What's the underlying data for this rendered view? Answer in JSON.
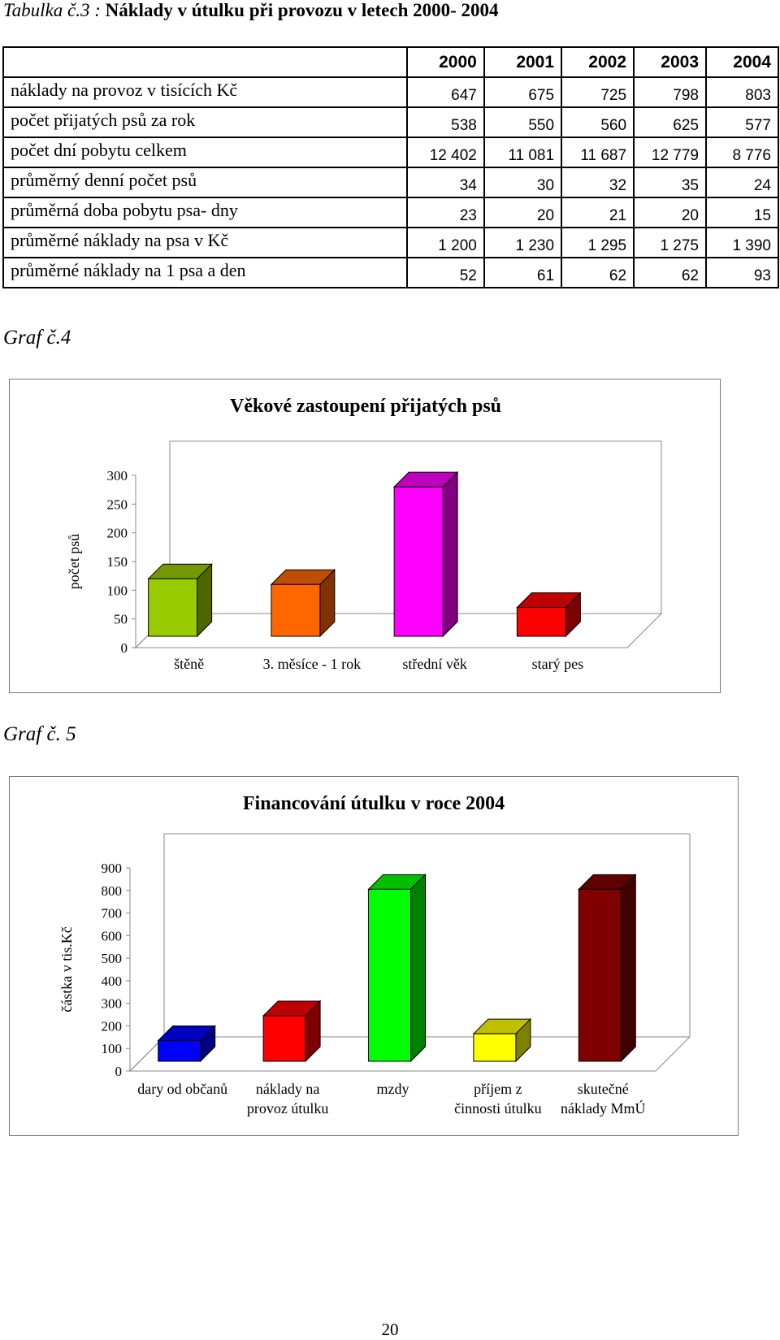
{
  "caption": {
    "prefix": "Tabulka č.3 :",
    "title": "Náklady v útulku při provozu v letech 2000- 2004"
  },
  "table": {
    "years": [
      "2000",
      "2001",
      "2002",
      "2003",
      "2004"
    ],
    "rows": [
      {
        "label": "náklady na provoz v tisících Kč",
        "values": [
          "647",
          "675",
          "725",
          "798",
          "803"
        ]
      },
      {
        "label": "počet přijatých psů za rok",
        "values": [
          "538",
          "550",
          "560",
          "625",
          "577"
        ]
      },
      {
        "label": "počet dní pobytu celkem",
        "values": [
          "12 402",
          "11 081",
          "11 687",
          "12 779",
          "8 776"
        ]
      },
      {
        "label": "průměrný denní počet psů",
        "values": [
          "34",
          "30",
          "32",
          "35",
          "24"
        ]
      },
      {
        "label": "průměrná doba pobytu psa- dny",
        "values": [
          "23",
          "20",
          "21",
          "20",
          "15"
        ]
      },
      {
        "label": "průměrné náklady na psa v Kč",
        "values": [
          "1 200",
          "1 230",
          "1 295",
          "1 275",
          "1 390"
        ]
      },
      {
        "label": "průměrné náklady na 1 psa a den",
        "values": [
          "52",
          "61",
          "62",
          "62",
          "93"
        ]
      }
    ]
  },
  "graf4_label": "Graf č.4",
  "graf5_label": "Graf č. 5",
  "page_number": "20",
  "chart_data": [
    {
      "type": "bar",
      "title": "Věkové zastoupení přijatých psů",
      "xlabel": "",
      "ylabel": "počet psů",
      "ylim": [
        0,
        300
      ],
      "yticks": [
        "0",
        "50",
        "100",
        "150",
        "200",
        "250",
        "300"
      ],
      "categories": [
        "štěně",
        "3. měsíce - 1 rok",
        "střední věk",
        "starý pes"
      ],
      "values": [
        120,
        110,
        280,
        70
      ],
      "colors": [
        "#99cc00",
        "#ff6600",
        "#ff00ff",
        "#ff0000"
      ],
      "style": "3d",
      "grid": false,
      "legend": "none"
    },
    {
      "type": "bar",
      "title": "Financování útulku v roce 2004",
      "xlabel": "",
      "ylabel": "částka v tis.Kč",
      "ylim": [
        0,
        900
      ],
      "yticks": [
        "0",
        "100",
        "200",
        "300",
        "400",
        "500",
        "600",
        "700",
        "800",
        "900"
      ],
      "categories": [
        [
          "dary od občanů"
        ],
        [
          "náklady na",
          "provoz útulku"
        ],
        [
          "mzdy"
        ],
        [
          "příjem z",
          "činnosti útulku"
        ],
        [
          "skutečné",
          "náklady MmÚ"
        ]
      ],
      "values": [
        135,
        245,
        805,
        165,
        805
      ],
      "colors": [
        "#0000ff",
        "#ff0000",
        "#00ff00",
        "#ffff00",
        "#800000"
      ],
      "style": "3d",
      "grid": false,
      "legend": "none"
    }
  ]
}
